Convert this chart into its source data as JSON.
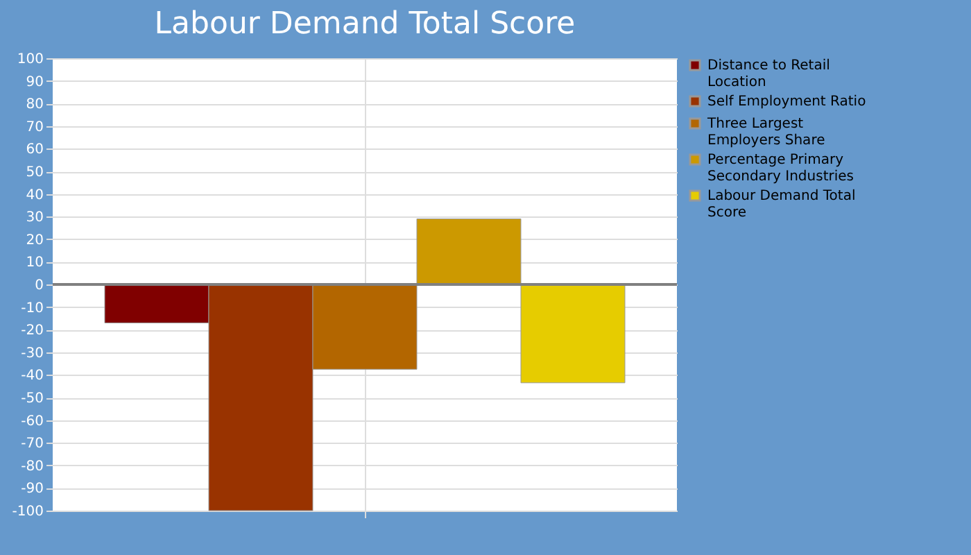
{
  "chart_data": {
    "type": "bar",
    "title": "Labour Demand Total Score",
    "categories": [
      null
    ],
    "series": [
      {
        "name": "Distance to Retail Location",
        "color": "#800000",
        "values": [
          -17
        ]
      },
      {
        "name": "Self Employment Ratio",
        "color": "#993300",
        "values": [
          -100
        ]
      },
      {
        "name": "Three Largest Employers Share",
        "color": "#b36600",
        "values": [
          -37.5
        ]
      },
      {
        "name": "Percentage Primary Secondary Industries",
        "color": "#cc9900",
        "values": [
          29
        ]
      },
      {
        "name": "Labour Demand Total Score",
        "color": "#e6cc00",
        "values": [
          -43.5
        ]
      }
    ],
    "ylim": [
      -100,
      100
    ],
    "yticks": [
      -100,
      -90,
      -80,
      -70,
      -60,
      -50,
      -40,
      -30,
      -20,
      -10,
      0,
      10,
      20,
      30,
      40,
      50,
      60,
      70,
      80,
      90,
      100
    ],
    "ref_lines": [
      {
        "axis": "y",
        "value": 0,
        "color": "#808080"
      }
    ],
    "grid": true,
    "legend": "right"
  }
}
